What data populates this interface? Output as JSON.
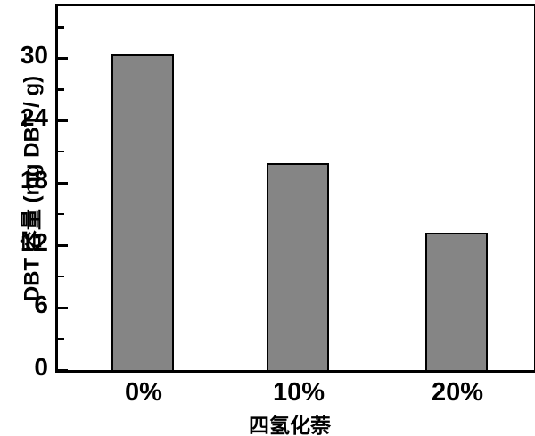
{
  "chart_data": {
    "type": "bar",
    "categories": [
      "0%",
      "10%",
      "20%"
    ],
    "values": [
      30.4,
      19.9,
      13.2
    ],
    "title": "",
    "xlabel": "四氢化萘",
    "ylabel": "DBT 容量 (mg DBT / g)",
    "ylim": [
      0,
      35
    ],
    "yticks": [
      0,
      6,
      12,
      18,
      24,
      30
    ],
    "minor_ticks": [
      3,
      9,
      15,
      21,
      27,
      33
    ],
    "grid": false,
    "legend": false,
    "bar_color": "#858585",
    "bar_border_color": "#000000",
    "axis_color": "#000000",
    "background_color": "#ffffff"
  }
}
